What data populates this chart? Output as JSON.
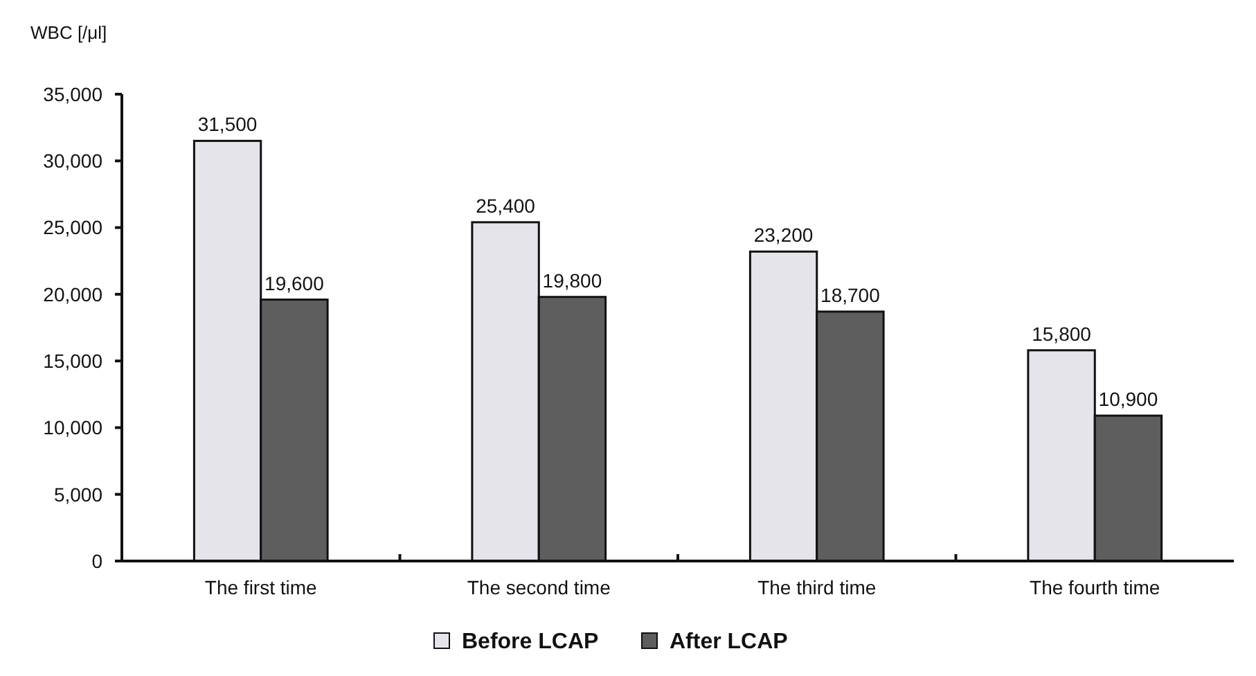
{
  "chart_data": {
    "type": "bar",
    "ylabel": "WBC [/μl]",
    "categories": [
      "The first time",
      "The second time",
      "The third time",
      "The fourth time"
    ],
    "series": [
      {
        "name": "Before LCAP",
        "color": "#e4e4ea",
        "values": [
          31500,
          25400,
          23200,
          15800
        ],
        "value_labels": [
          "31,500",
          "25,400",
          "23,200",
          "15,800"
        ]
      },
      {
        "name": "After LCAP",
        "color": "#5e5e5e",
        "values": [
          19600,
          19800,
          18700,
          10900
        ],
        "value_labels": [
          "19,600",
          "19,800",
          "18,700",
          "10,900"
        ]
      }
    ],
    "ylim": [
      0,
      35000
    ],
    "yticks": [
      {
        "value": 0,
        "label": "0"
      },
      {
        "value": 5000,
        "label": "5,000"
      },
      {
        "value": 10000,
        "label": "10,000"
      },
      {
        "value": 15000,
        "label": "15,000"
      },
      {
        "value": 20000,
        "label": "20,000"
      },
      {
        "value": 25000,
        "label": "25,000"
      },
      {
        "value": 30000,
        "label": "30,000"
      },
      {
        "value": 35000,
        "label": "35,000"
      }
    ],
    "legend": "bottom",
    "grid": false
  }
}
